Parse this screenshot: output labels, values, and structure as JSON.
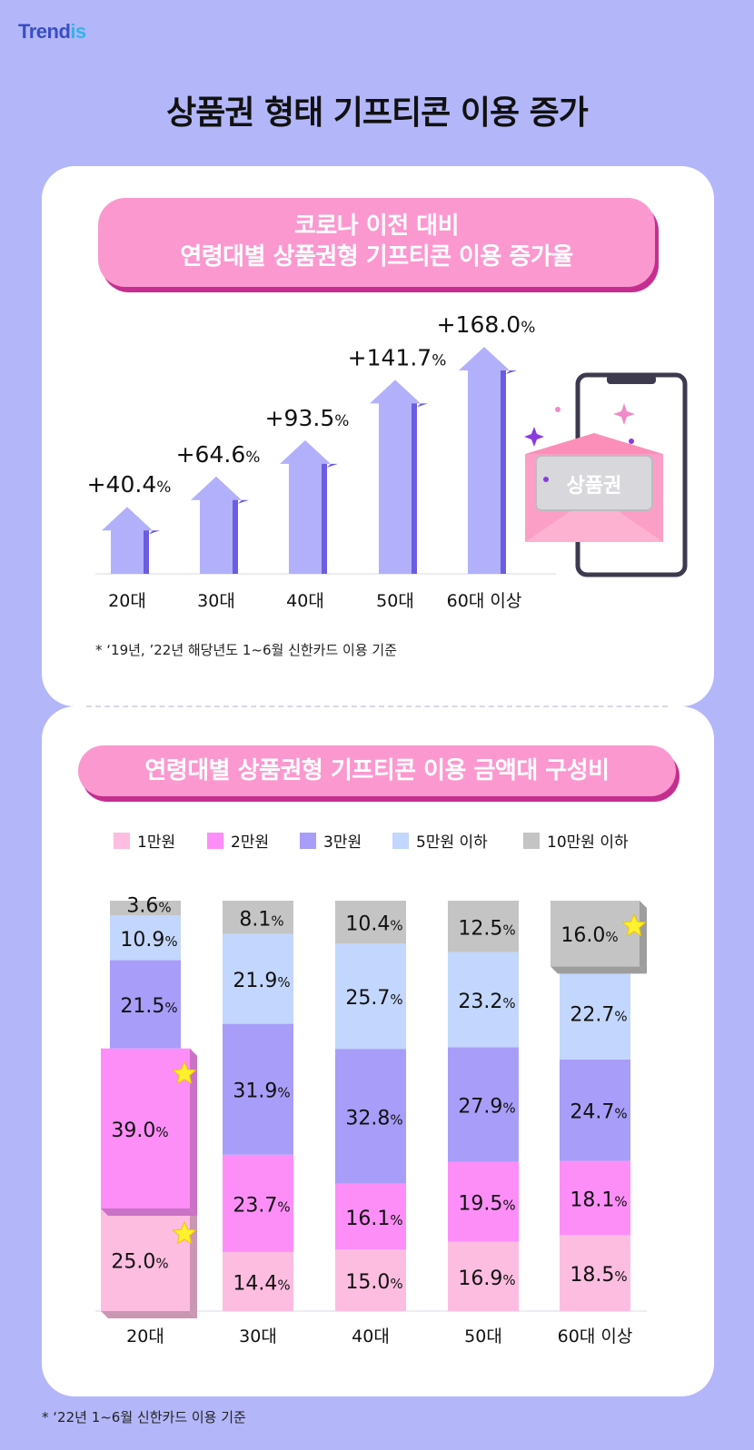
{
  "brand": {
    "logo_main": "Trend",
    "logo_accent": "is"
  },
  "title": "상품권 형태 기프티콘 이용 증가",
  "chart_data": [
    {
      "type": "bar",
      "title_line1": "코로나 이전 대비",
      "title_line2": "연령대별 상품권형 기프티콘 이용 증가율",
      "categories": [
        "20대",
        "30대",
        "40대",
        "50대",
        "60대 이상"
      ],
      "values": [
        40.4,
        64.6,
        93.5,
        141.7,
        168.0
      ],
      "value_labels": [
        "+40.4",
        "+64.6",
        "+93.5",
        "+141.7",
        "+168.0"
      ],
      "unit": "%",
      "bar_color": "#b3b0fb",
      "bar_shadow_color": "#6b5de0",
      "grid": false,
      "illustration_label": "상품권",
      "note": "*  ‘19년, ’22년 해당년도 1~6월 신한카드 이용 기준"
    },
    {
      "type": "bar",
      "stacked": true,
      "title": "연령대별 상품권형 기프티콘 이용 금액대 구성비",
      "categories": [
        "20대",
        "30대",
        "40대",
        "50대",
        "60대 이상"
      ],
      "series": [
        {
          "name": "1만원",
          "color": "#fdbde0",
          "values": [
            25.0,
            14.4,
            15.0,
            16.9,
            18.5
          ]
        },
        {
          "name": "2만원",
          "color": "#fd8ef7",
          "values": [
            39.0,
            23.7,
            16.1,
            19.5,
            18.1
          ]
        },
        {
          "name": "3만원",
          "color": "#a89df8",
          "values": [
            21.5,
            31.9,
            32.8,
            27.9,
            24.7
          ]
        },
        {
          "name": "5만원 이하",
          "color": "#c3d6fd",
          "values": [
            10.9,
            21.9,
            25.7,
            23.2,
            22.7
          ]
        },
        {
          "name": "10만원 이하",
          "color": "#c4c4c4",
          "values": [
            3.6,
            8.1,
            10.4,
            12.5,
            16.0
          ]
        }
      ],
      "unit": "%",
      "legend_position": "top",
      "highlights": [
        {
          "category": "20대",
          "series": "1만원"
        },
        {
          "category": "20대",
          "series": "2만원"
        },
        {
          "category": "60대 이상",
          "series": "10만원 이하"
        }
      ],
      "note": "*  ‘22년 1~6월 신한카드 이용 기준"
    }
  ]
}
